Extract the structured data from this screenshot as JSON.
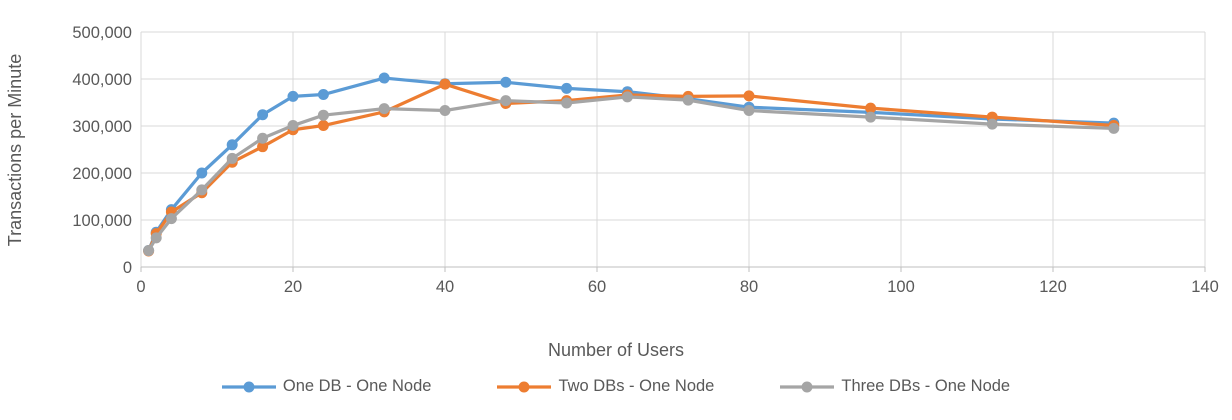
{
  "chart_data": {
    "type": "line",
    "title": "",
    "xlabel": "Number of Users",
    "ylabel": "Transactions per Minute",
    "xlim": [
      0,
      140
    ],
    "ylim": [
      0,
      500000
    ],
    "grid": true,
    "legend_position": "bottom",
    "x_ticks": [
      "0",
      "20",
      "40",
      "60",
      "80",
      "100",
      "120",
      "140"
    ],
    "y_ticks": [
      "0",
      "100,000",
      "200,000",
      "300,000",
      "400,000",
      "500,000"
    ],
    "x": [
      1,
      2,
      4,
      8,
      12,
      16,
      20,
      24,
      32,
      40,
      48,
      56,
      64,
      72,
      80,
      96,
      112,
      128
    ],
    "series": [
      {
        "name": "One DB - One Node",
        "color": "#5B9BD5",
        "values": [
          35000,
          74000,
          122000,
          200000,
          260000,
          324000,
          363000,
          367000,
          402000,
          390000,
          393000,
          380000,
          373000,
          358000,
          340000,
          329000,
          315000,
          306000
        ]
      },
      {
        "name": "Two DBs - One Node",
        "color": "#ED7D31",
        "values": [
          34000,
          71000,
          117000,
          158000,
          223000,
          256000,
          292000,
          301000,
          330000,
          389000,
          348000,
          354000,
          366000,
          363000,
          364000,
          338000,
          319000,
          301000
        ]
      },
      {
        "name": "Three DBs - One Node",
        "color": "#A5A5A5",
        "values": [
          35000,
          62000,
          103000,
          164000,
          231000,
          274000,
          301000,
          323000,
          337000,
          333000,
          354000,
          349000,
          362000,
          355000,
          333000,
          319000,
          304000,
          295000
        ]
      }
    ],
    "colors": {
      "text": "#595959",
      "gridline": "#D9D9D9",
      "axis_line": "#BFBFBF"
    }
  }
}
